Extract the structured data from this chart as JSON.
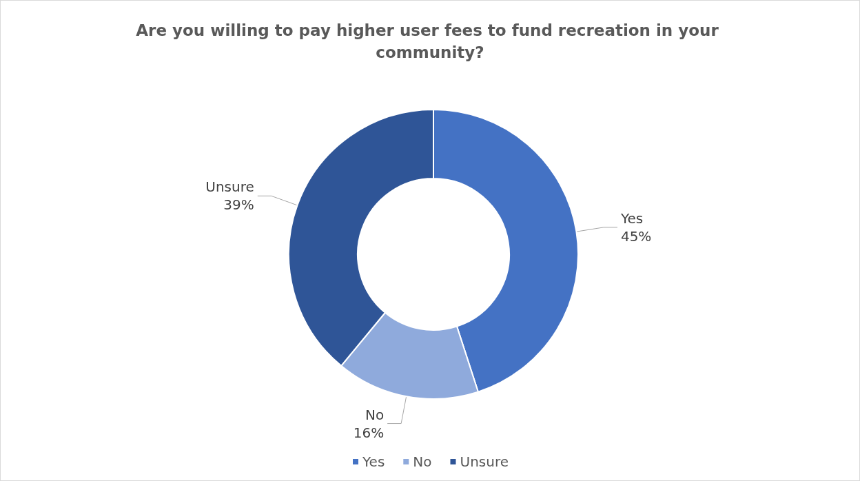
{
  "chart_data": {
    "type": "donut",
    "title": "Are you willing to pay higher user fees to fund recreation in your community?",
    "categories": [
      "Yes",
      "No",
      "Unsure"
    ],
    "values": [
      45,
      16,
      39
    ],
    "colors": [
      "#4472c4",
      "#8faadc",
      "#2f5597"
    ],
    "value_labels": [
      "45%",
      "16%",
      "39%"
    ],
    "legend": "bottom"
  }
}
